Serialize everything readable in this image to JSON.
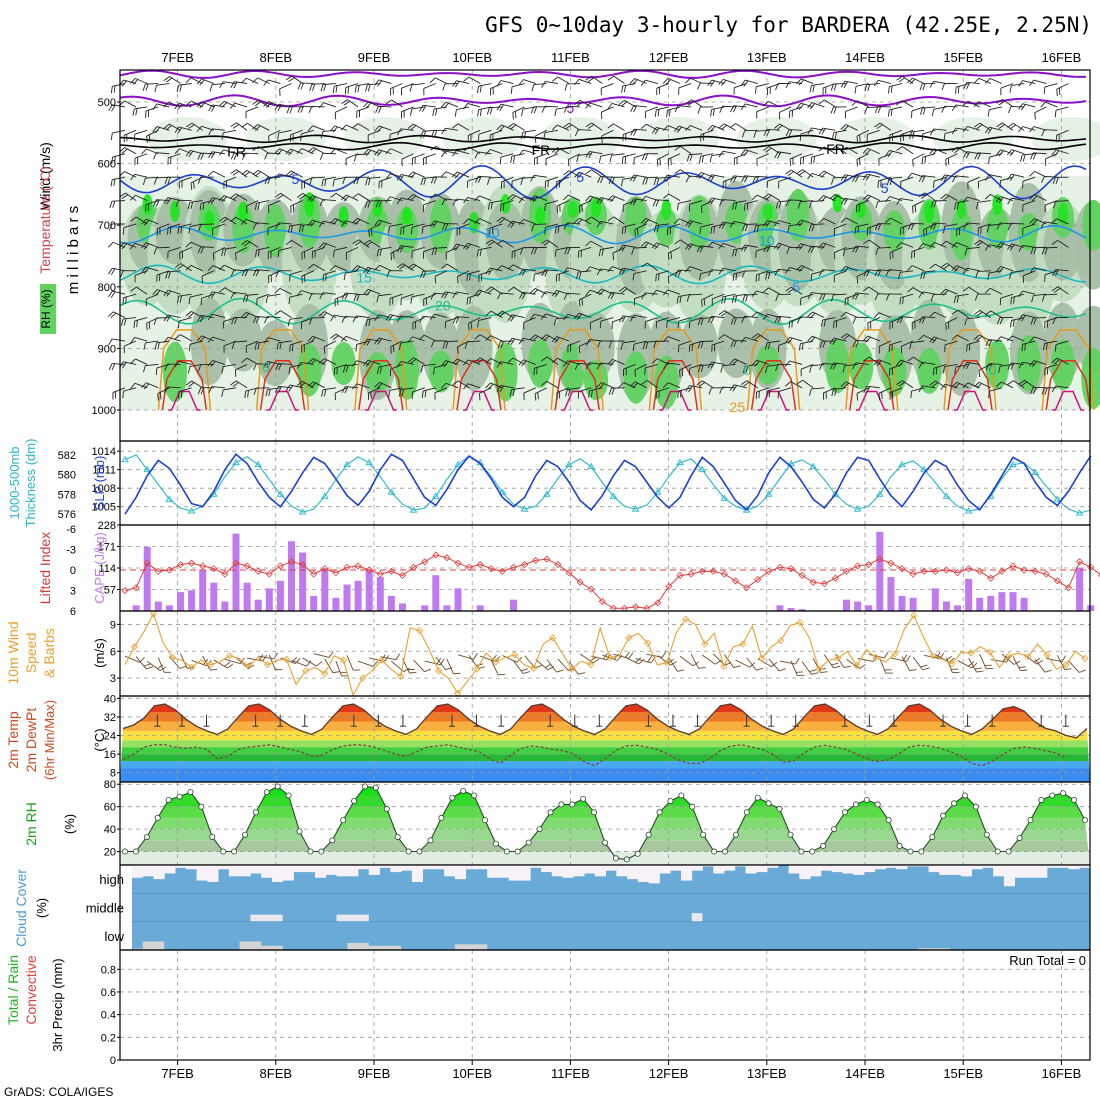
{
  "title": "GFS 0~10day 3-hourly for BARDERA (42.25E, 2.25N)",
  "footer": "GrADS: COLA/IGES",
  "dates": [
    "7FEB",
    "8FEB",
    "9FEB",
    "10FEB",
    "11FEB",
    "12FEB",
    "13FEB",
    "14FEB",
    "15FEB",
    "16FEB"
  ],
  "colors": {
    "rh_light": "#e6f2e6",
    "rh_mid": "#c2dcc2",
    "rh_dark": "#a6bda6",
    "rh_green": "#5fd25f",
    "rh_bright": "#1ee61e",
    "purple": "#8a10c8",
    "freeze": "#000000",
    "blue5": "#1c3fd2",
    "blue10": "#1e96e6",
    "cyan15": "#1cb8c0",
    "green20": "#1cc08a",
    "orange": "#e89a1e",
    "red30": "#e0301c",
    "magenta35": "#d0107a",
    "slp": "#1c3fd2",
    "thickness": "#26b8c8",
    "cape": "#c07af0",
    "lifted": "#e03c3c",
    "wind10m": "#e8a030",
    "barb": "#6b4a2a",
    "cloud": "#6aaad6",
    "cloud_gap": "#f6f2f8",
    "low_cloud": "#d4d4d4"
  },
  "chart_data": [
    {
      "type": "heatmap",
      "name": "upper-air",
      "ylabel_parts": [
        "RH (%)",
        "Temperature (°C)",
        "Wind (m/s)"
      ],
      "y_axis_label": "millibars",
      "y_ticks": [
        500,
        600,
        700,
        800,
        900,
        1000
      ],
      "ylim": [
        1000,
        450
      ],
      "contour_labels": [
        {
          "text": "5",
          "t": 4.0,
          "p": 510,
          "color": "purple"
        },
        {
          "text": "FR",
          "t": 0.6,
          "p": 580,
          "color": "freeze"
        },
        {
          "text": "FR",
          "t": 3.7,
          "p": 578,
          "color": "freeze"
        },
        {
          "text": "FR",
          "t": 6.7,
          "p": 576,
          "color": "freeze"
        },
        {
          "text": "5",
          "t": 1.2,
          "p": 625,
          "color": "blue5"
        },
        {
          "text": "5",
          "t": 4.1,
          "p": 622,
          "color": "blue5"
        },
        {
          "text": "5",
          "t": 7.2,
          "p": 640,
          "color": "blue5"
        },
        {
          "text": "10",
          "t": 3.2,
          "p": 712,
          "color": "blue10"
        },
        {
          "text": "10",
          "t": 6.0,
          "p": 725,
          "color": "blue10"
        },
        {
          "text": "15",
          "t": 1.9,
          "p": 785,
          "color": "cyan15"
        },
        {
          "text": "5",
          "t": 6.3,
          "p": 800,
          "color": "blue10"
        },
        {
          "text": "20",
          "t": 2.7,
          "p": 830,
          "color": "green20"
        },
        {
          "text": "0",
          "t": 0.9,
          "p": 930,
          "color": "green20"
        },
        {
          "text": "0",
          "t": 5.8,
          "p": 935,
          "color": "green20"
        },
        {
          "text": "0",
          "t": 8.3,
          "p": 935,
          "color": "green20"
        },
        {
          "text": "25",
          "t": 5.7,
          "p": 995,
          "color": "orange"
        }
      ]
    },
    {
      "type": "line",
      "name": "slp-thickness",
      "ylabel_left": "1000-500mb Thickness (dm)",
      "ylabel_right": "SLP (mb)",
      "left_ticks": [
        576,
        578,
        580,
        582
      ],
      "left_range": [
        575.5,
        583
      ],
      "right_ticks": [
        1005,
        1008,
        1011,
        1014
      ],
      "right_range": [
        1003,
        1015
      ],
      "series": [
        {
          "key": "slp",
          "values": [
            1003.8,
            1006.5,
            1010,
            1012.5,
            1011.2,
            1008.5,
            1005.5,
            1005,
            1007.5,
            1011,
            1013.5,
            1012,
            1009,
            1006.5,
            1005,
            1007.5,
            1010.5,
            1013,
            1012,
            1009.5,
            1006.8,
            1005.2,
            1007.5,
            1011,
            1013.5,
            1012.5,
            1009.5,
            1006.5,
            1005.2,
            1007.8,
            1011,
            1013.2,
            1012,
            1009.5,
            1006.5,
            1005,
            1006.5,
            1010,
            1012.5,
            1011.5,
            1009,
            1006,
            1004.5,
            1006.8,
            1010,
            1012.5,
            1011.5,
            1009,
            1006.5,
            1004.8,
            1006.5,
            1010,
            1013,
            1011.5,
            1008.8,
            1006,
            1004.5,
            1006.8,
            1010.5,
            1013,
            1011.5,
            1009,
            1006.2,
            1004.8,
            1007,
            1010.5,
            1013,
            1012.5,
            1009.5,
            1006.8,
            1005,
            1007.5,
            1010.5,
            1012.5,
            1011.5,
            1008.5,
            1006,
            1004.5,
            1007,
            1010,
            1013,
            1012,
            1009,
            1006.5,
            1005.2,
            1007.5,
            1010.5,
            1013.2
          ]
        },
        {
          "key": "thickness",
          "values": [
            581.5,
            582,
            580.5,
            579,
            577.5,
            576.6,
            576.3,
            576.8,
            578,
            579.8,
            581.2,
            581.8,
            581,
            579.5,
            578,
            576.8,
            576.2,
            576.5,
            577.8,
            579.5,
            581,
            581.8,
            581.2,
            579.8,
            578.2,
            577,
            576.4,
            576.6,
            577.8,
            579.5,
            581,
            581.9,
            581.2,
            579.8,
            578.2,
            577,
            576.5,
            576.8,
            578,
            579.6,
            581,
            581.6,
            580.8,
            579.2,
            577.8,
            576.8,
            576.5,
            576.9,
            578.2,
            579.8,
            581.2,
            581.6,
            580.5,
            579,
            577.6,
            576.8,
            576.4,
            576.8,
            578,
            579.6,
            581.1,
            581.5,
            580.8,
            579.5,
            578,
            577,
            576.5,
            576.8,
            578,
            579.8,
            581,
            581.4,
            580.5,
            579.2,
            577.8,
            576.8,
            576.3,
            576.5,
            577.8,
            579.6,
            581,
            581.2,
            580.2,
            578.8,
            577.5,
            576.5,
            576.1,
            576.4
          ]
        }
      ]
    },
    {
      "type": "bar",
      "name": "cape-lifted",
      "ylabel_left": "Lifted Index",
      "ylabel_right": "CAPE (J/kg)",
      "left_ticks": [
        "-6",
        "-3",
        "0",
        "3",
        "6"
      ],
      "right_ticks": [
        "228",
        "171",
        "114",
        "57"
      ],
      "cape_max": 228,
      "cape": [
        0,
        15,
        170,
        25,
        15,
        50,
        55,
        110,
        75,
        25,
        205,
        75,
        30,
        60,
        80,
        185,
        155,
        40,
        110,
        35,
        70,
        80,
        110,
        90,
        40,
        20,
        0,
        15,
        95,
        15,
        60,
        0,
        15,
        0,
        0,
        30,
        0,
        0,
        0,
        0,
        0,
        0,
        0,
        0,
        0,
        0,
        0,
        0,
        0,
        0,
        0,
        0,
        0,
        0,
        0,
        0,
        0,
        0,
        0,
        15,
        8,
        5,
        0,
        0,
        0,
        30,
        25,
        15,
        210,
        90,
        40,
        35,
        0,
        60,
        25,
        15,
        85,
        35,
        40,
        50,
        50,
        35,
        0,
        0,
        0,
        0,
        115,
        15,
        0
      ],
      "lifted": [
        3,
        2.6,
        -1,
        0.2,
        0,
        -0.8,
        -1,
        -0.6,
        -0.2,
        0.6,
        -1,
        -0.6,
        0.2,
        0.6,
        -0.6,
        -1.2,
        -0.8,
        0.6,
        -0.2,
        0.4,
        -0.4,
        -0.6,
        0,
        0.6,
        0.2,
        0.8,
        -0.4,
        -1.2,
        -2.2,
        -1.8,
        -1,
        -0.4,
        -0.8,
        -0.2,
        0.2,
        -0.4,
        -0.8,
        -1.4,
        -1.6,
        -0.8,
        0.4,
        1.8,
        2.8,
        4.6,
        5.6,
        5.6,
        5.4,
        5.6,
        4.8,
        2.4,
        0.8,
        0.6,
        0.2,
        0.2,
        0.6,
        1.6,
        2.6,
        1.4,
        0.2,
        -0.4,
        -0.2,
        0.8,
        1.8,
        2,
        1.2,
        0.2,
        -0.6,
        -0.8,
        -1.6,
        -1,
        -0.2,
        0.6,
        0.2,
        0.2,
        0,
        0.4,
        -0.2,
        0.2,
        1.2,
        0.2,
        -0.6,
        0,
        0.2,
        0.6,
        1.6,
        2.6,
        -1.2,
        -0.4,
        0.8,
        1.2,
        0.2
      ]
    },
    {
      "type": "line",
      "name": "wind10m",
      "ylabel": "10m Wind Speed & Barbs",
      "unit": "(m/s)",
      "y_ticks": [
        3,
        6,
        9
      ],
      "ylim": [
        1,
        10.5
      ],
      "values": [
        4.5,
        6.5,
        8.2,
        10.2,
        7,
        5.3,
        5,
        4.2,
        5,
        4.5,
        4.8,
        5.5,
        5.2,
        4.3,
        5.3,
        4.5,
        5,
        5.1,
        2.3,
        3.8,
        4.2,
        3.5,
        5.5,
        5,
        1.1,
        3,
        3.8,
        5,
        4,
        3.2,
        8.6,
        8.3,
        6.2,
        3.8,
        3,
        1.3,
        2.6,
        4,
        5.8,
        4.8,
        5.3,
        5.6,
        4.5,
        4.1,
        6.8,
        7.5,
        5.8,
        4,
        4.9,
        4.5,
        8.6,
        5.3,
        5.5,
        7.5,
        8,
        6.9,
        4.5,
        4.7,
        8.1,
        9.6,
        9,
        6.8,
        8,
        4.3,
        6.5,
        6.8,
        8.8,
        5.2,
        6.5,
        7.2,
        8.9,
        9.2,
        7.5,
        4,
        5,
        5.2,
        6,
        4.4,
        6.2,
        5.3,
        4.8,
        5.7,
        8.5,
        10,
        7.6,
        5.5,
        5.1,
        4.6,
        5.9,
        5.8,
        6.5,
        5.9,
        4.2,
        5.5,
        5.8,
        5.4,
        6.8,
        5.6,
        4,
        4.5,
        6,
        5.2
      ]
    },
    {
      "type": "area",
      "name": "temp-dewpoint",
      "ylabel": "2m Temp 2m DewPt (6hr Min/Max)",
      "unit": "(°C)",
      "y_ticks": [
        8,
        16,
        24,
        32,
        40
      ],
      "ylim": [
        4,
        41
      ],
      "temp": [
        27,
        28.5,
        31.5,
        36.8,
        37.5,
        35,
        31,
        28,
        26,
        24.5,
        26.8,
        32,
        36.8,
        37.5,
        35,
        31,
        28,
        26,
        24.5,
        26.8,
        32,
        36.8,
        37.5,
        35,
        31,
        28,
        26,
        24.5,
        26.8,
        32,
        36.8,
        37.5,
        35,
        31,
        28,
        26,
        24.5,
        26.8,
        32,
        36.8,
        37.5,
        35,
        31,
        28,
        26,
        24.5,
        26.8,
        32,
        36.8,
        37.5,
        35,
        31,
        28,
        26,
        24.5,
        26.8,
        32,
        36.8,
        37.5,
        35,
        31,
        28,
        26,
        24.5,
        26.8,
        32,
        36.8,
        37.5,
        35,
        31,
        28,
        26,
        24.5,
        26.8,
        32,
        36.8,
        37.5,
        35,
        31,
        28,
        26,
        24.5,
        26.8,
        31,
        35.5,
        36.5,
        34.5,
        30,
        27.2,
        26,
        24,
        23,
        27
      ],
      "dewpoint": [
        13.5,
        16,
        19,
        20,
        20,
        19,
        18.5,
        19,
        18,
        14,
        15,
        18,
        19,
        19.5,
        20,
        19,
        18,
        17,
        15,
        15.5,
        18,
        19.5,
        20,
        19.8,
        19,
        17.5,
        16,
        15,
        17,
        19,
        19.5,
        20,
        19,
        18,
        17,
        14,
        12,
        15.5,
        18.5,
        19.5,
        19,
        18,
        17.5,
        16,
        12.8,
        11,
        14,
        17.5,
        19.5,
        19.8,
        19,
        18,
        16,
        13.5,
        12,
        12,
        14,
        17.5,
        19.5,
        20,
        19,
        18,
        16,
        12.5,
        13,
        16.5,
        19,
        19.8,
        19,
        18,
        16,
        14,
        12.8,
        13.5,
        16,
        19,
        19.8,
        19.5,
        18.5,
        17,
        15,
        12,
        11,
        13,
        16,
        18.5,
        19,
        18.5,
        17.5,
        16.5,
        14.5
      ]
    },
    {
      "type": "area",
      "name": "rh2m",
      "ylabel": "2m RH",
      "unit": "(%)",
      "y_ticks": [
        20,
        40,
        60,
        80
      ],
      "ylim": [
        8,
        82
      ],
      "values": [
        20,
        20,
        33,
        50,
        66,
        69,
        73,
        60,
        33,
        20,
        20,
        35,
        55,
        73,
        78,
        70,
        38,
        20,
        20,
        30,
        48,
        65,
        78,
        77,
        58,
        33,
        20,
        20,
        30,
        50,
        68,
        74,
        70,
        48,
        27,
        20,
        20,
        28,
        40,
        55,
        62,
        62,
        67,
        55,
        28,
        14,
        13,
        18,
        35,
        55,
        65,
        70,
        60,
        35,
        20,
        20,
        35,
        55,
        68,
        63,
        58,
        35,
        20,
        20,
        25,
        40,
        55,
        62,
        66,
        62,
        48,
        25,
        20,
        20,
        33,
        52,
        63,
        70,
        60,
        35,
        20,
        20,
        32,
        48,
        66,
        70,
        72,
        66,
        48
      ]
    },
    {
      "type": "area",
      "name": "cloud-cover",
      "ylabel": "Cloud Cover",
      "unit": "(%)",
      "levels": [
        "high",
        "middle",
        "low"
      ],
      "high": [
        55,
        60,
        50,
        70,
        90,
        85,
        45,
        40,
        85,
        60,
        60,
        70,
        55,
        40,
        45,
        75,
        75,
        55,
        65,
        60,
        60,
        85,
        65,
        90,
        75,
        80,
        40,
        85,
        85,
        60,
        50,
        85,
        85,
        55,
        55,
        45,
        45,
        90,
        75,
        60,
        55,
        60,
        70,
        60,
        80,
        60,
        50,
        40,
        35,
        70,
        80,
        45,
        80,
        95,
        70,
        80,
        95,
        70,
        75,
        90,
        100,
        70,
        50,
        60,
        80,
        75,
        70,
        65,
        75,
        85,
        90,
        85,
        95,
        95,
        75,
        65,
        65,
        60,
        85,
        90,
        60,
        25,
        55,
        55,
        55,
        90,
        90,
        85,
        90
      ],
      "middle": [
        0,
        0,
        0,
        0,
        0,
        0,
        0,
        0,
        0,
        0,
        0,
        0,
        0,
        0,
        0,
        0,
        0,
        0,
        0,
        0,
        0,
        0,
        0,
        0,
        0,
        0,
        0,
        0,
        0,
        0,
        0,
        0,
        0,
        0,
        0,
        0,
        0,
        0,
        0,
        0,
        0,
        0,
        0,
        0,
        0,
        0,
        0,
        0,
        0,
        0,
        0,
        0,
        0,
        0,
        0,
        0,
        0,
        0,
        0,
        0,
        0,
        0,
        0,
        0,
        0,
        0,
        0,
        0,
        0,
        0,
        0,
        0,
        0,
        0,
        0,
        0,
        0,
        0,
        0,
        0,
        0,
        0,
        0,
        0,
        0,
        0,
        0,
        0,
        0
      ],
      "middle_patches": [
        [
          11,
          14,
          25
        ],
        [
          19,
          22,
          25
        ],
        [
          52,
          53,
          30
        ]
      ],
      "low_patches": [
        [
          0.2,
          1,
          5
        ],
        [
          1,
          3,
          30
        ],
        [
          10,
          12,
          30
        ],
        [
          12,
          14,
          15
        ],
        [
          20,
          22,
          25
        ],
        [
          22,
          25,
          15
        ],
        [
          30,
          33,
          20
        ],
        [
          73,
          76,
          6
        ]
      ]
    },
    {
      "type": "bar",
      "name": "precip",
      "ylabel": "Total / Rain / Convective",
      "ylabel_unit": "3hr Precip (mm)",
      "y_ticks": [
        "0",
        "0.2",
        "0.4",
        "0.6",
        "0.8"
      ],
      "ylim": [
        0,
        0.97
      ],
      "run_total_label": "Run Total = 0",
      "values": []
    }
  ]
}
